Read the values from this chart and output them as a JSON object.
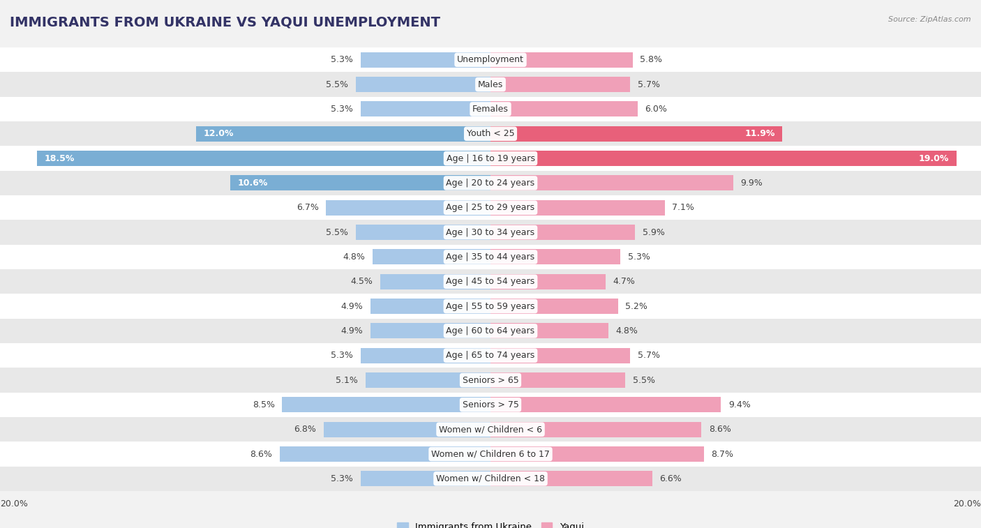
{
  "title": "IMMIGRANTS FROM UKRAINE VS YAQUI UNEMPLOYMENT",
  "source": "Source: ZipAtlas.com",
  "categories": [
    "Unemployment",
    "Males",
    "Females",
    "Youth < 25",
    "Age | 16 to 19 years",
    "Age | 20 to 24 years",
    "Age | 25 to 29 years",
    "Age | 30 to 34 years",
    "Age | 35 to 44 years",
    "Age | 45 to 54 years",
    "Age | 55 to 59 years",
    "Age | 60 to 64 years",
    "Age | 65 to 74 years",
    "Seniors > 65",
    "Seniors > 75",
    "Women w/ Children < 6",
    "Women w/ Children 6 to 17",
    "Women w/ Children < 18"
  ],
  "ukraine_values": [
    5.3,
    5.5,
    5.3,
    12.0,
    18.5,
    10.6,
    6.7,
    5.5,
    4.8,
    4.5,
    4.9,
    4.9,
    5.3,
    5.1,
    8.5,
    6.8,
    8.6,
    5.3
  ],
  "yaqui_values": [
    5.8,
    5.7,
    6.0,
    11.9,
    19.0,
    9.9,
    7.1,
    5.9,
    5.3,
    4.7,
    5.2,
    4.8,
    5.7,
    5.5,
    9.4,
    8.6,
    8.7,
    6.6
  ],
  "ukraine_color": "#a8c8e8",
  "yaqui_color": "#f0a0b8",
  "ukraine_highlight_color": "#7aaed4",
  "yaqui_highlight_color": "#e8607a",
  "bg_color": "#f2f2f2",
  "row_bg_even": "#ffffff",
  "row_bg_odd": "#e8e8e8",
  "xlim": 20.0,
  "legend_ukraine": "Immigrants from Ukraine",
  "legend_yaqui": "Yaqui",
  "bar_height": 0.62,
  "title_fontsize": 14,
  "value_fontsize": 9,
  "category_fontsize": 9,
  "source_fontsize": 8
}
